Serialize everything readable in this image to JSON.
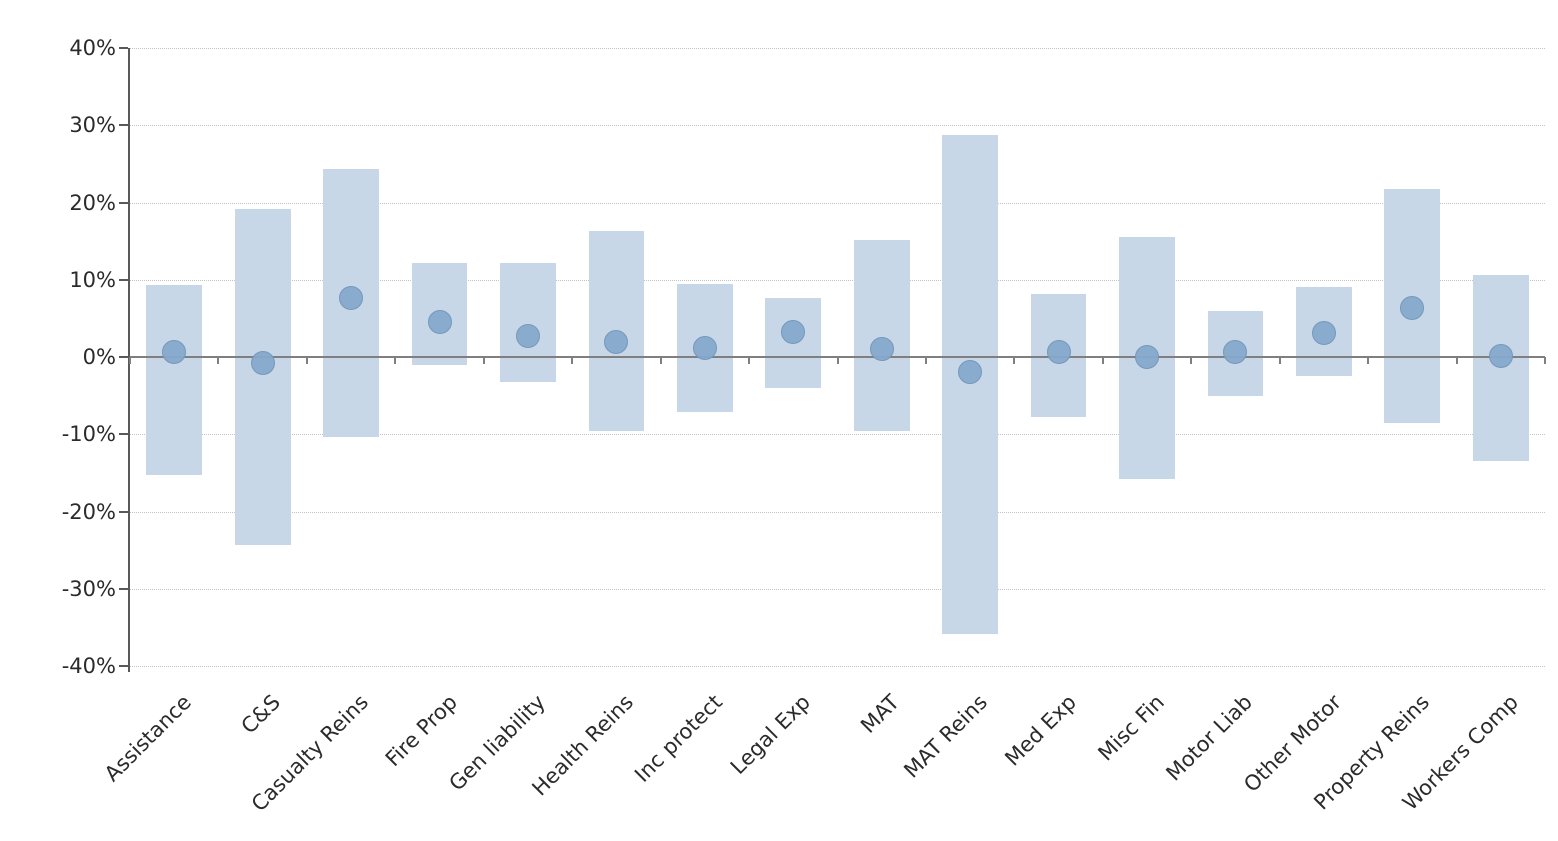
{
  "chart_data": {
    "type": "bar",
    "subtype": "floating-range-bars-with-point-markers",
    "title": "",
    "legend": "none",
    "unit": "%",
    "categories": [
      "Assistance",
      "C&S",
      "Casualty Reins",
      "Fire Prop",
      "Gen liability",
      "Health Reins",
      "Inc protect",
      "Legal Exp",
      "MAT",
      "MAT Reins",
      "Med Exp",
      "Misc Fin",
      "Motor Liab",
      "Other Motor",
      "Property Reins",
      "Workers Comp"
    ],
    "series": [
      {
        "name": "range_high",
        "values": [
          9.3,
          19.1,
          24.4,
          12.2,
          12.2,
          16.3,
          9.4,
          7.6,
          15.1,
          28.7,
          8.1,
          15.5,
          5.9,
          9.0,
          21.7,
          10.6
        ]
      },
      {
        "name": "range_low",
        "values": [
          -15.3,
          -24.3,
          -10.3,
          -1.0,
          -3.2,
          -9.6,
          -7.1,
          -4.0,
          -9.6,
          -35.9,
          -7.8,
          -15.8,
          -5.0,
          -2.5,
          -8.6,
          -13.5
        ]
      },
      {
        "name": "point",
        "values": [
          0.6,
          -0.8,
          7.7,
          4.5,
          2.7,
          2.0,
          1.2,
          3.2,
          1.1,
          -1.9,
          0.6,
          0.0,
          0.6,
          3.1,
          6.4,
          0.1
        ]
      }
    ],
    "ylim": [
      -40,
      40
    ],
    "yticks": [
      40,
      30,
      20,
      10,
      0,
      -10,
      -20,
      -30,
      -40
    ],
    "ytick_labels": [
      "40%",
      "30%",
      "20%",
      "10%",
      "0%",
      "-10%",
      "-20%",
      "-30%",
      "-40%"
    ],
    "grid": "horizontal-dotted",
    "colors": {
      "bar_fill": "#c7d7e7",
      "marker_fill": "#86a9cc",
      "marker_edge": "#7095ba",
      "zero_line": "#7f7f7f",
      "axis_line": "#595959",
      "gridline": "#c3c3c3",
      "label_text": "#2b2b2b"
    }
  }
}
